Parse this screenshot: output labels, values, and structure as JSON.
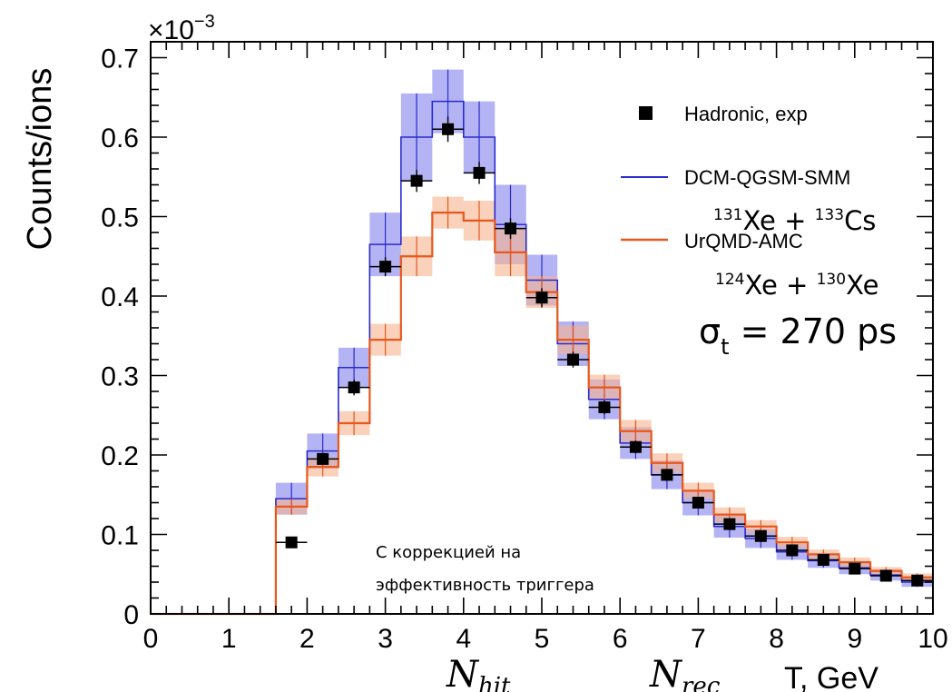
{
  "chart_data": {
    "type": "step-histogram",
    "xlim": [
      0,
      10
    ],
    "ylim": [
      0,
      0.72
    ],
    "y_multiplier": "×10",
    "y_multiplier_exp": "−3",
    "ylabel": "Counts/ions",
    "x_tick_labels": [
      "0",
      "1",
      "2",
      "3",
      "4",
      "5",
      "6",
      "7",
      "8",
      "9",
      "10"
    ],
    "y_tick_labels": [
      "0",
      "0.1",
      "0.2",
      "0.3",
      "0.4",
      "0.5",
      "0.6",
      "0.7"
    ],
    "x_axis_titles": [
      {
        "main": "N",
        "sub": "hit"
      },
      {
        "main": "N",
        "sub": "rec"
      },
      {
        "main": "T, GeV",
        "sub": ""
      }
    ],
    "bin_edges": [
      1.6,
      2.0,
      2.4,
      2.8,
      3.2,
      3.6,
      4.0,
      4.4,
      4.8,
      5.2,
      5.6,
      6.0,
      6.4,
      6.8,
      7.2,
      7.6,
      8.0,
      8.4,
      8.8,
      9.2,
      9.6,
      10.0
    ],
    "legend": [
      {
        "label": "Hadronic, exp",
        "kind": "marker"
      },
      {
        "label": "DCM-QGSM-SMM",
        "kind": "line",
        "color": "#2a2ad0"
      },
      {
        "label": "UrQMD-AMC",
        "kind": "line",
        "color": "#e8581c"
      }
    ],
    "series": [
      {
        "name": "DCM-QGSM-SMM",
        "color": "#2a2ad0",
        "band_color": "#8c8cf0",
        "values": [
          0.145,
          0.205,
          0.31,
          0.465,
          0.6,
          0.645,
          0.6,
          0.49,
          0.42,
          0.34,
          0.27,
          0.215,
          0.175,
          0.14,
          0.11,
          0.095,
          0.078,
          0.067,
          0.058,
          0.049,
          0.04
        ],
        "errors": [
          0.02,
          0.022,
          0.025,
          0.04,
          0.055,
          0.04,
          0.045,
          0.05,
          0.032,
          0.028,
          0.025,
          0.02,
          0.018,
          0.016,
          0.014,
          0.012,
          0.01,
          0.009,
          0.008,
          0.007,
          0.006
        ]
      },
      {
        "name": "UrQMD-AMC",
        "color": "#e8581c",
        "band_color": "#f6b28e",
        "values": [
          0.135,
          0.185,
          0.24,
          0.345,
          0.45,
          0.505,
          0.495,
          0.455,
          0.405,
          0.345,
          0.285,
          0.23,
          0.19,
          0.155,
          0.125,
          0.11,
          0.09,
          0.075,
          0.065,
          0.054,
          0.046
        ],
        "errors": [
          0.01,
          0.012,
          0.015,
          0.02,
          0.025,
          0.02,
          0.025,
          0.03,
          0.02,
          0.018,
          0.016,
          0.014,
          0.012,
          0.01,
          0.009,
          0.008,
          0.007,
          0.006,
          0.006,
          0.005,
          0.005
        ]
      },
      {
        "name": "Hadronic, exp",
        "color": "#000000",
        "x": [
          1.8,
          2.2,
          2.6,
          3.0,
          3.4,
          3.8,
          4.2,
          4.6,
          5.0,
          5.4,
          5.8,
          6.2,
          6.6,
          7.0,
          7.4,
          7.8,
          8.2,
          8.6,
          9.0,
          9.4,
          9.8
        ],
        "values": [
          0.09,
          0.195,
          0.285,
          0.437,
          0.545,
          0.61,
          0.555,
          0.485,
          0.398,
          0.32,
          0.26,
          0.21,
          0.175,
          0.14,
          0.113,
          0.098,
          0.08,
          0.068,
          0.057,
          0.048,
          0.042
        ],
        "errors": [
          0.004,
          0.006,
          0.01,
          0.012,
          0.014,
          0.016,
          0.014,
          0.013,
          0.012,
          0.01,
          0.009,
          0.008,
          0.007,
          0.006,
          0.005,
          0.005,
          0.004,
          0.004,
          0.004,
          0.003,
          0.003
        ]
      }
    ]
  },
  "overlays": {
    "reaction1": {
      "a1": "131",
      "e1": "Xe",
      "plus": " + ",
      "a2": "133",
      "e2": "Cs"
    },
    "reaction2": {
      "a1": "124",
      "e1": "Xe",
      "plus": " + ",
      "a2": "130",
      "e2": "Xe"
    },
    "sigma": {
      "symbol": "σ",
      "sub": "t",
      "value": " = 270 ps"
    },
    "note_line1": "С коррекцией на",
    "note_line2": "эффективность триггера"
  }
}
